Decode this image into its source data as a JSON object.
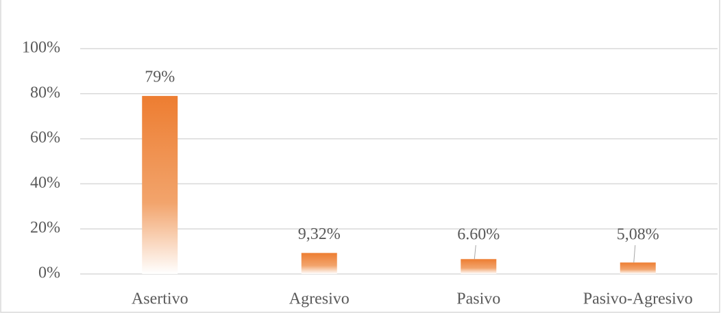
{
  "chart_data": {
    "type": "bar",
    "categories": [
      "Asertivo",
      "Agresivo",
      "Pasivo",
      "Pasivo-Agresivo"
    ],
    "values": [
      79,
      9.32,
      6.6,
      5.08
    ],
    "value_labels": [
      "79%",
      "9,32%",
      "6.60%",
      "5,08%"
    ],
    "color": "#ED7D31",
    "ylim": [
      0,
      100
    ],
    "yticks": [
      {
        "value": 0,
        "label": "0%"
      },
      {
        "value": 20,
        "label": "20%"
      },
      {
        "value": 40,
        "label": "40%"
      },
      {
        "value": 60,
        "label": "60%"
      },
      {
        "value": 80,
        "label": "80%"
      },
      {
        "value": 100,
        "label": "100%"
      }
    ],
    "grid": true
  }
}
